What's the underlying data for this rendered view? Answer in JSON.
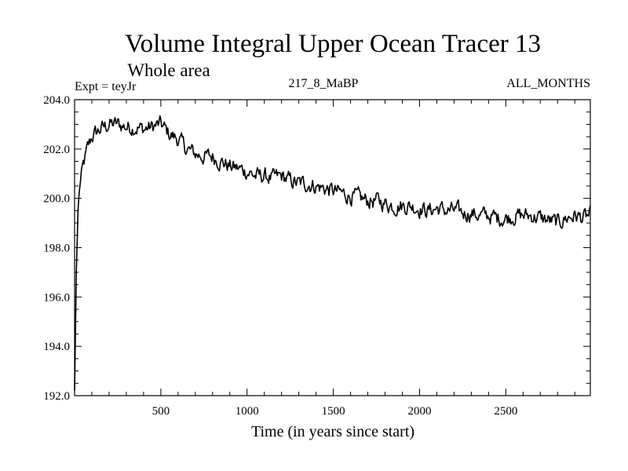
{
  "chart_data": {
    "type": "line",
    "title": "Volume Integral Upper Ocean Tracer 13",
    "subtitle": "Whole area",
    "annotations": {
      "left": "Expt = teyJr",
      "center": "217_8_MaBP",
      "right": "ALL_MONTHS"
    },
    "xlabel": "Time (in years since start)",
    "ylabel": "",
    "xlim": [
      0,
      2990
    ],
    "ylim": [
      192.0,
      204.0
    ],
    "x_ticks": [
      500,
      1000,
      1500,
      2000,
      2500
    ],
    "x_tick_labels": [
      "500",
      "1000",
      "1500",
      "2000",
      "2500"
    ],
    "y_ticks": [
      192.0,
      194.0,
      196.0,
      198.0,
      200.0,
      202.0,
      204.0
    ],
    "y_tick_labels": [
      "192.0",
      "194.0",
      "196.0",
      "198.0",
      "200.0",
      "202.0",
      "204.0"
    ],
    "grid": false,
    "series": [
      {
        "name": "Upper Ocean Tracer 13",
        "color": "#000000",
        "x": [
          0,
          5,
          10,
          20,
          30,
          50,
          75,
          100,
          150,
          200,
          250,
          300,
          350,
          400,
          450,
          500,
          550,
          600,
          650,
          700,
          750,
          800,
          850,
          900,
          950,
          1000,
          1050,
          1100,
          1150,
          1200,
          1250,
          1300,
          1350,
          1400,
          1450,
          1500,
          1550,
          1600,
          1650,
          1700,
          1750,
          1800,
          1850,
          1900,
          1950,
          2000,
          2050,
          2100,
          2150,
          2200,
          2250,
          2300,
          2350,
          2400,
          2450,
          2500,
          2550,
          2600,
          2650,
          2700,
          2750,
          2800,
          2850,
          2900,
          2950,
          2990
        ],
        "y": [
          192.2,
          194.5,
          197.0,
          199.5,
          200.5,
          201.3,
          202.0,
          202.5,
          202.8,
          203.0,
          203.0,
          202.9,
          202.9,
          202.8,
          202.9,
          203.0,
          202.6,
          202.4,
          202.0,
          201.8,
          201.7,
          201.7,
          201.5,
          201.3,
          201.2,
          201.1,
          200.9,
          200.9,
          200.8,
          200.9,
          200.7,
          200.6,
          200.6,
          200.5,
          200.4,
          200.3,
          200.2,
          200.1,
          200.0,
          199.9,
          199.9,
          199.8,
          199.7,
          199.7,
          199.7,
          199.6,
          199.5,
          199.6,
          199.5,
          199.5,
          199.4,
          199.4,
          199.3,
          199.3,
          199.2,
          199.2,
          199.3,
          199.3,
          199.3,
          199.2,
          199.1,
          199.0,
          199.2,
          199.3,
          199.2,
          199.3
        ]
      }
    ]
  }
}
